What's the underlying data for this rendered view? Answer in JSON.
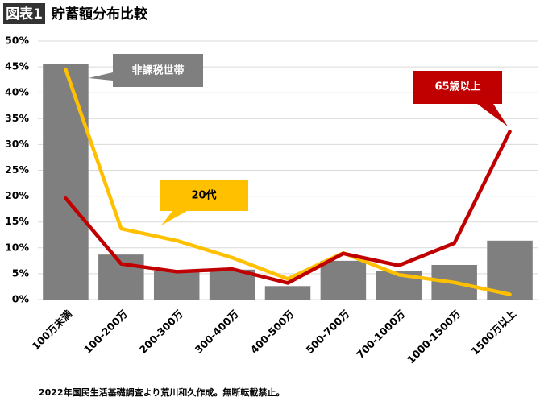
{
  "chart_data": {
    "type": "bar",
    "title_label": "図表1",
    "title": "貯蓄額分布比較",
    "note": "2022年国民生活基礎調査より荒川和久作成。無断転載禁止。",
    "categories": [
      "100万未満",
      "100-200万",
      "200-300万",
      "300-400万",
      "400-500万",
      "500-700万",
      "700-1000万",
      "1000-1500万",
      "1500万以上"
    ],
    "series": [
      {
        "name": "非課税世帯",
        "type": "bar",
        "color": "#7f7f7f",
        "values": [
          45.5,
          8.7,
          5.6,
          5.8,
          2.6,
          7.5,
          5.6,
          6.7,
          11.4
        ]
      },
      {
        "name": "20代",
        "type": "line",
        "color": "#ffc000",
        "values": [
          44.5,
          13.7,
          11.4,
          8.1,
          4.0,
          9.0,
          4.8,
          3.3,
          1.0
        ]
      },
      {
        "name": "65歳以上",
        "type": "line",
        "color": "#c00000",
        "values": [
          19.6,
          6.9,
          5.4,
          5.9,
          3.2,
          8.9,
          6.6,
          10.9,
          32.5
        ]
      }
    ],
    "ylim": [
      0,
      50
    ],
    "yticks": [
      {
        "value": 0,
        "label": "0%"
      },
      {
        "value": 5,
        "label": "5%"
      },
      {
        "value": 10,
        "label": "10%"
      },
      {
        "value": 15,
        "label": "15%"
      },
      {
        "value": 20,
        "label": "20%"
      },
      {
        "value": 25,
        "label": "25%"
      },
      {
        "value": 30,
        "label": "30%"
      },
      {
        "value": 35,
        "label": "35%"
      },
      {
        "value": 40,
        "label": "40%"
      },
      {
        "value": 45,
        "label": "45%"
      },
      {
        "value": 50,
        "label": "50%"
      }
    ],
    "grid": true
  }
}
